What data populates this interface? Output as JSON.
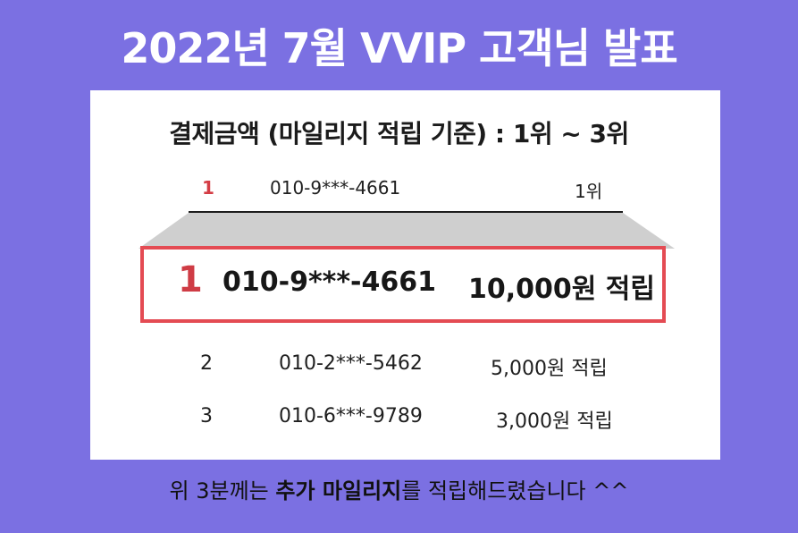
{
  "headline": "2022년 7월 VVIP 고객님 발표",
  "subtitle": "결제금액 (마일리지 적립 기준) : 1위 ~ 3위",
  "top_row": {
    "rank": "1",
    "phone": "010-9***-4661",
    "reward": "1위"
  },
  "highlight": {
    "rank": "1",
    "phone": "010-9***-4661",
    "reward": "10,000원 적립"
  },
  "rows": [
    {
      "rank": "2",
      "phone": "010-2***-5462",
      "reward": "5,000원 적립"
    },
    {
      "rank": "3",
      "phone": "010-6***-9789",
      "reward": "3,000원 적립"
    }
  ],
  "footer": {
    "prefix": "위 3분께는 ",
    "emphasis": "추가 마일리지",
    "suffix": "를 적립해드렸습니다 ^^"
  },
  "colors": {
    "background": "#7b70e2",
    "panel": "#ffffff",
    "highlight_border": "#e44b53",
    "rank_red": "#cf3c45",
    "zoom_gray": "#cfcfcf"
  }
}
